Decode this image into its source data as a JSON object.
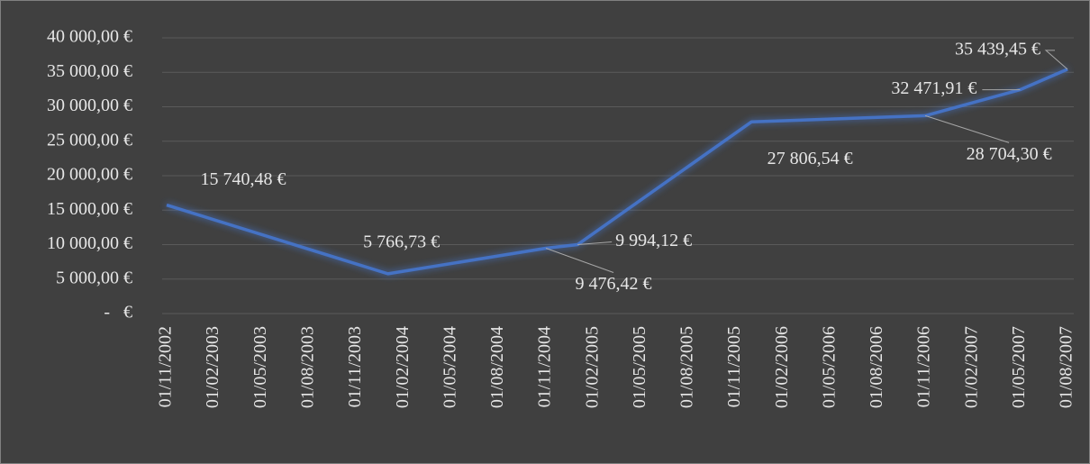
{
  "chart_data": {
    "type": "line",
    "x": [
      "01/11/2002",
      "01/01/2004",
      "01/11/2004",
      "01/01/2005",
      "01/12/2005",
      "01/11/2006",
      "01/05/2007",
      "01/08/2007"
    ],
    "series": [
      {
        "color": "#4472c4",
        "values": [
          15740.48,
          5766.73,
          9476.42,
          9994.12,
          27806.54,
          28704.3,
          32471.91,
          35439.45
        ],
        "value_labels": [
          "15 740,48 €",
          "5 766,73 €",
          "9 476,42 €",
          "9 994,12 €",
          "27 806,54 €",
          "28 704,30 €",
          "32 471,91 €",
          "35 439,45 €"
        ]
      }
    ],
    "xlim": [
      "01/11/2002",
      "01/08/2007"
    ],
    "xticks": [
      "01/11/2002",
      "01/02/2003",
      "01/05/2003",
      "01/08/2003",
      "01/11/2003",
      "01/02/2004",
      "01/05/2004",
      "01/08/2004",
      "01/11/2004",
      "01/02/2005",
      "01/05/2005",
      "01/08/2005",
      "01/11/2005",
      "01/02/2006",
      "01/05/2006",
      "01/08/2006",
      "01/11/2006",
      "01/02/2007",
      "01/05/2007",
      "01/08/2007"
    ],
    "ylim": [
      0,
      40000
    ],
    "yticks": [
      {
        "value": 0,
        "label": "-   €"
      },
      {
        "value": 5000,
        "label": "5 000,00 €"
      },
      {
        "value": 10000,
        "label": "10 000,00 €"
      },
      {
        "value": 15000,
        "label": "15 000,00 €"
      },
      {
        "value": 20000,
        "label": "20 000,00 €"
      },
      {
        "value": 25000,
        "label": "25 000,00 €"
      },
      {
        "value": 30000,
        "label": "30 000,00 €"
      },
      {
        "value": 35000,
        "label": "35 000,00 €"
      },
      {
        "value": 40000,
        "label": "40 000,00 €"
      }
    ],
    "grid": true
  }
}
